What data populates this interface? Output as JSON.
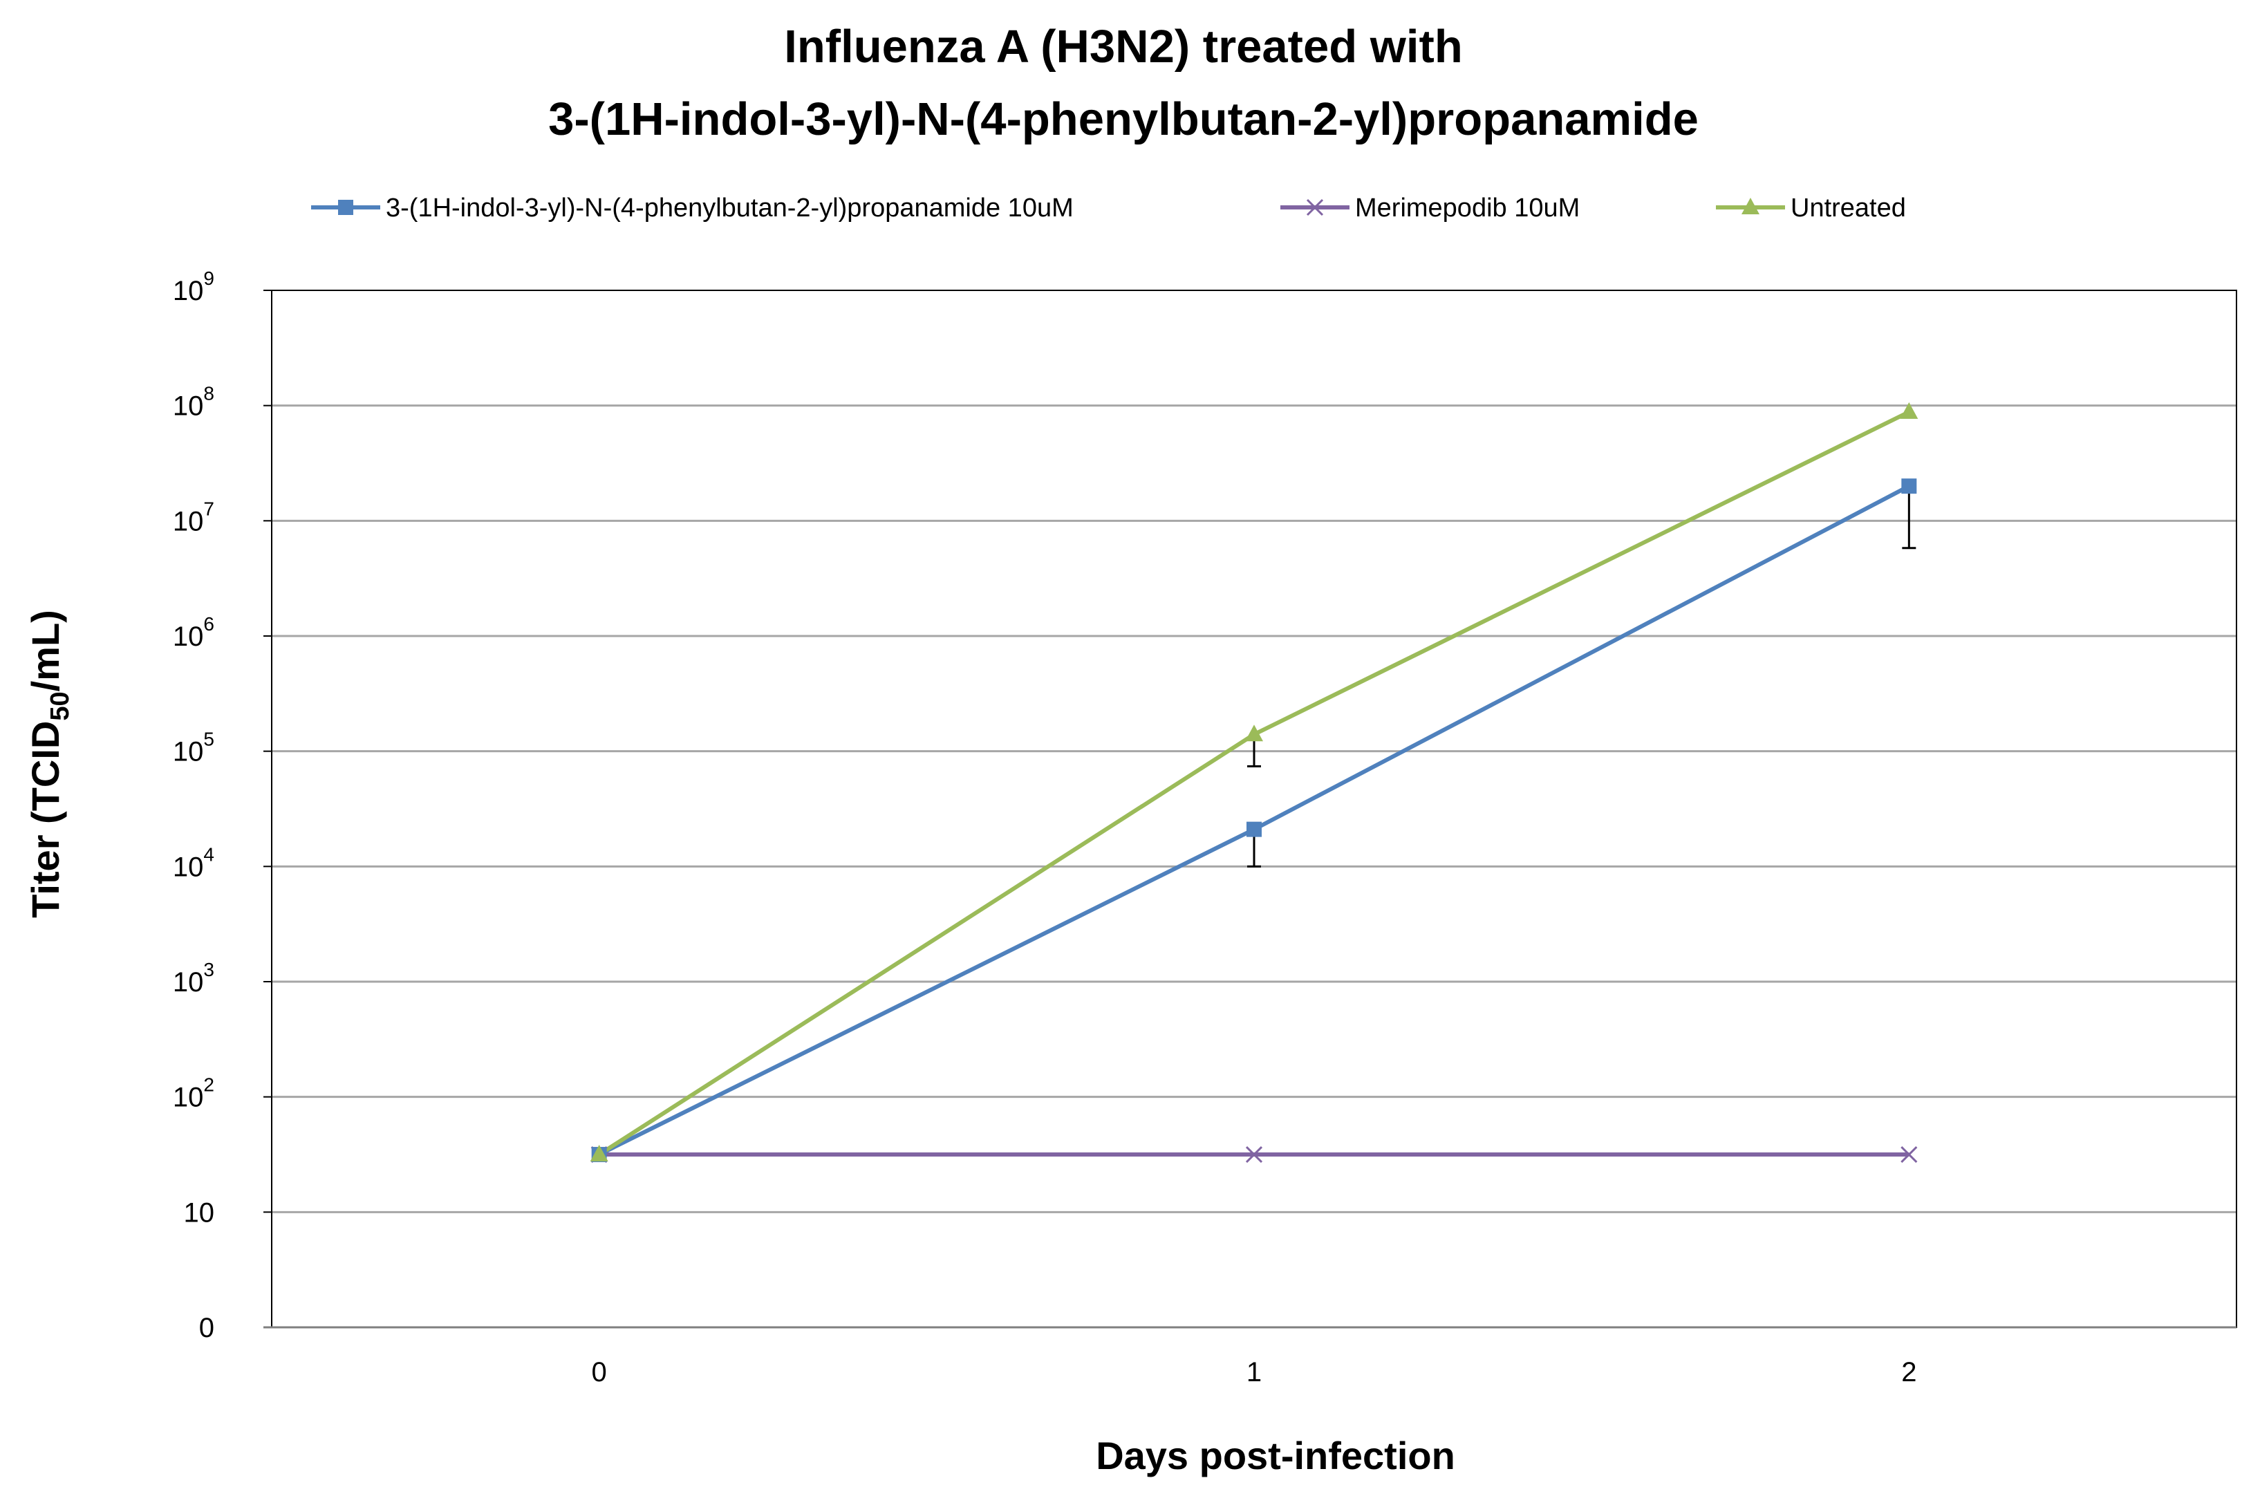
{
  "chart_data": {
    "type": "line",
    "title": [
      "Influenza A (H3N2) treated with",
      "3-(1H-indol-3-yl)-N-(4-phenylbutan-2-yl)propanamide"
    ],
    "xlabel": "Days post-infection",
    "ylabel": {
      "pre": "Titer  (TCID",
      "sub": "50",
      "post": "/mL)"
    },
    "x": [
      0,
      1,
      2
    ],
    "x_ticks": [
      "0",
      "1",
      "2"
    ],
    "y_scale": "log",
    "y_ticks": [
      {
        "value": 1,
        "base": "0",
        "exp": ""
      },
      {
        "value": 10,
        "base": "10",
        "exp": ""
      },
      {
        "value": 100,
        "base": "10",
        "exp": "2"
      },
      {
        "value": 1000,
        "base": "10",
        "exp": "3"
      },
      {
        "value": 10000,
        "base": "10",
        "exp": "4"
      },
      {
        "value": 100000,
        "base": "10",
        "exp": "5"
      },
      {
        "value": 1000000,
        "base": "10",
        "exp": "6"
      },
      {
        "value": 10000000,
        "base": "10",
        "exp": "7"
      },
      {
        "value": 100000000,
        "base": "10",
        "exp": "8"
      },
      {
        "value": 1000000000,
        "base": "10",
        "exp": "9"
      }
    ],
    "ylim": [
      1,
      1000000000
    ],
    "grid": true,
    "legend_position": "top",
    "series": [
      {
        "name": "3-(1H-indol-3-yl)-N-(4-phenylbutan-2-yl)propanamide 10uM",
        "color": "#4F81BD",
        "marker": "square",
        "values": [
          31.6,
          21000,
          20000000
        ],
        "error_low": [
          null,
          10000,
          5800000
        ]
      },
      {
        "name": "Merimepodib 10uM",
        "color": "#8064A2",
        "marker": "x",
        "values": [
          31.6,
          31.6,
          31.6
        ],
        "error_low": [
          null,
          null,
          null
        ]
      },
      {
        "name": "Untreated",
        "color": "#9BBB59",
        "marker": "triangle",
        "values": [
          31.6,
          140000,
          88000000
        ],
        "error_low": [
          null,
          74000,
          null
        ]
      }
    ]
  }
}
